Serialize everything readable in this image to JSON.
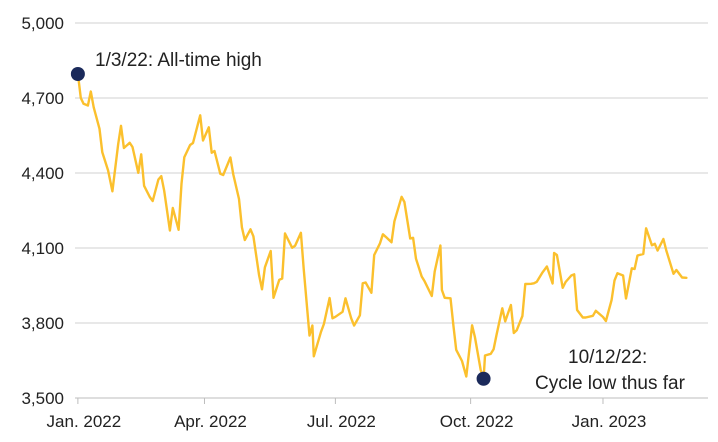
{
  "chart_data": {
    "type": "line",
    "title": "",
    "xlabel": "",
    "ylabel": "",
    "ylim": [
      3500,
      5000
    ],
    "yticks": [
      "3,500",
      "3,800",
      "4,100",
      "4,400",
      "4,700",
      "5,000"
    ],
    "ytick_values": [
      3500,
      3800,
      4100,
      4400,
      4700,
      5000
    ],
    "xticks": [
      "Jan. 2022",
      "Apr. 2022",
      "Jul. 2022",
      "Oct. 2022",
      "Jan. 2023"
    ],
    "xtick_dates": [
      "2022-01-03",
      "2022-04-01",
      "2022-07-01",
      "2022-10-03",
      "2023-01-03"
    ],
    "xlim": [
      "2022-01-01",
      "2023-03-17"
    ],
    "grid": "horizontal",
    "line_color": "#FBC02D",
    "marker_color": "#1B2A5B",
    "series": [
      {
        "name": "",
        "points": [
          [
            "2022-01-03",
            4796
          ],
          [
            "2022-01-05",
            4700
          ],
          [
            "2022-01-07",
            4677
          ],
          [
            "2022-01-10",
            4670
          ],
          [
            "2022-01-12",
            4726
          ],
          [
            "2022-01-14",
            4663
          ],
          [
            "2022-01-18",
            4577
          ],
          [
            "2022-01-20",
            4483
          ],
          [
            "2022-01-24",
            4410
          ],
          [
            "2022-01-27",
            4327
          ],
          [
            "2022-01-31",
            4516
          ],
          [
            "2022-02-02",
            4589
          ],
          [
            "2022-02-04",
            4500
          ],
          [
            "2022-02-08",
            4521
          ],
          [
            "2022-02-10",
            4504
          ],
          [
            "2022-02-14",
            4401
          ],
          [
            "2022-02-16",
            4475
          ],
          [
            "2022-02-18",
            4349
          ],
          [
            "2022-02-22",
            4304
          ],
          [
            "2022-02-24",
            4288
          ],
          [
            "2022-02-28",
            4374
          ],
          [
            "2022-03-02",
            4387
          ],
          [
            "2022-03-04",
            4329
          ],
          [
            "2022-03-08",
            4170
          ],
          [
            "2022-03-10",
            4260
          ],
          [
            "2022-03-14",
            4173
          ],
          [
            "2022-03-16",
            4357
          ],
          [
            "2022-03-18",
            4463
          ],
          [
            "2022-03-22",
            4512
          ],
          [
            "2022-03-24",
            4520
          ],
          [
            "2022-03-29",
            4631
          ],
          [
            "2022-03-31",
            4530
          ],
          [
            "2022-04-04",
            4583
          ],
          [
            "2022-04-06",
            4481
          ],
          [
            "2022-04-08",
            4488
          ],
          [
            "2022-04-12",
            4397
          ],
          [
            "2022-04-14",
            4392
          ],
          [
            "2022-04-19",
            4462
          ],
          [
            "2022-04-21",
            4394
          ],
          [
            "2022-04-25",
            4296
          ],
          [
            "2022-04-27",
            4183
          ],
          [
            "2022-04-29",
            4132
          ],
          [
            "2022-05-03",
            4175
          ],
          [
            "2022-05-05",
            4147
          ],
          [
            "2022-05-09",
            3991
          ],
          [
            "2022-05-11",
            3935
          ],
          [
            "2022-05-13",
            4023
          ],
          [
            "2022-05-17",
            4088
          ],
          [
            "2022-05-19",
            3901
          ],
          [
            "2022-05-23",
            3973
          ],
          [
            "2022-05-25",
            3978
          ],
          [
            "2022-05-27",
            4158
          ],
          [
            "2022-06-01",
            4101
          ],
          [
            "2022-06-03",
            4109
          ],
          [
            "2022-06-07",
            4161
          ],
          [
            "2022-06-09",
            4017
          ],
          [
            "2022-06-13",
            3750
          ],
          [
            "2022-06-15",
            3790
          ],
          [
            "2022-06-16",
            3667
          ],
          [
            "2022-06-21",
            3765
          ],
          [
            "2022-06-23",
            3796
          ],
          [
            "2022-06-27",
            3900
          ],
          [
            "2022-06-29",
            3819
          ],
          [
            "2022-07-01",
            3825
          ],
          [
            "2022-07-06",
            3845
          ],
          [
            "2022-07-08",
            3899
          ],
          [
            "2022-07-12",
            3819
          ],
          [
            "2022-07-14",
            3790
          ],
          [
            "2022-07-18",
            3831
          ],
          [
            "2022-07-20",
            3959
          ],
          [
            "2022-07-22",
            3962
          ],
          [
            "2022-07-26",
            3921
          ],
          [
            "2022-07-28",
            4072
          ],
          [
            "2022-08-01",
            4119
          ],
          [
            "2022-08-03",
            4155
          ],
          [
            "2022-08-05",
            4145
          ],
          [
            "2022-08-09",
            4123
          ],
          [
            "2022-08-11",
            4207
          ],
          [
            "2022-08-16",
            4305
          ],
          [
            "2022-08-18",
            4284
          ],
          [
            "2022-08-22",
            4138
          ],
          [
            "2022-08-24",
            4141
          ],
          [
            "2022-08-26",
            4057
          ],
          [
            "2022-08-30",
            3986
          ],
          [
            "2022-09-01",
            3967
          ],
          [
            "2022-09-06",
            3908
          ],
          [
            "2022-09-08",
            4006
          ],
          [
            "2022-09-12",
            4110
          ],
          [
            "2022-09-13",
            3932
          ],
          [
            "2022-09-15",
            3901
          ],
          [
            "2022-09-19",
            3899
          ],
          [
            "2022-09-21",
            3790
          ],
          [
            "2022-09-23",
            3693
          ],
          [
            "2022-09-27",
            3648
          ],
          [
            "2022-09-30",
            3586
          ],
          [
            "2022-10-04",
            3791
          ],
          [
            "2022-10-06",
            3744
          ],
          [
            "2022-10-10",
            3612
          ],
          [
            "2022-10-12",
            3577
          ],
          [
            "2022-10-13",
            3670
          ],
          [
            "2022-10-17",
            3677
          ],
          [
            "2022-10-19",
            3695
          ],
          [
            "2022-10-21",
            3752
          ],
          [
            "2022-10-25",
            3859
          ],
          [
            "2022-10-27",
            3807
          ],
          [
            "2022-10-31",
            3872
          ],
          [
            "2022-11-02",
            3760
          ],
          [
            "2022-11-04",
            3771
          ],
          [
            "2022-11-08",
            3828
          ],
          [
            "2022-11-10",
            3956
          ],
          [
            "2022-11-14",
            3957
          ],
          [
            "2022-11-16",
            3959
          ],
          [
            "2022-11-18",
            3965
          ],
          [
            "2022-11-22",
            4003
          ],
          [
            "2022-11-25",
            4026
          ],
          [
            "2022-11-29",
            3958
          ],
          [
            "2022-11-30",
            4080
          ],
          [
            "2022-12-02",
            4072
          ],
          [
            "2022-12-06",
            3941
          ],
          [
            "2022-12-08",
            3964
          ],
          [
            "2022-12-12",
            3990
          ],
          [
            "2022-12-14",
            3995
          ],
          [
            "2022-12-16",
            3852
          ],
          [
            "2022-12-20",
            3822
          ],
          [
            "2022-12-22",
            3822
          ],
          [
            "2022-12-27",
            3829
          ],
          [
            "2022-12-29",
            3849
          ],
          [
            "2023-01-03",
            3824
          ],
          [
            "2023-01-05",
            3808
          ],
          [
            "2023-01-09",
            3892
          ],
          [
            "2023-01-11",
            3970
          ],
          [
            "2023-01-13",
            3999
          ],
          [
            "2023-01-17",
            3990
          ],
          [
            "2023-01-19",
            3898
          ],
          [
            "2023-01-23",
            4019
          ],
          [
            "2023-01-25",
            4016
          ],
          [
            "2023-01-27",
            4070
          ],
          [
            "2023-01-31",
            4076
          ],
          [
            "2023-02-02",
            4179
          ],
          [
            "2023-02-06",
            4111
          ],
          [
            "2023-02-08",
            4117
          ],
          [
            "2023-02-10",
            4090
          ],
          [
            "2023-02-14",
            4136
          ],
          [
            "2023-02-16",
            4090
          ],
          [
            "2023-02-21",
            3997
          ],
          [
            "2023-02-23",
            4012
          ],
          [
            "2023-02-27",
            3982
          ],
          [
            "2023-03-02",
            3981
          ]
        ]
      }
    ],
    "annotations": [
      {
        "date": "2022-01-03",
        "value": 4796,
        "label": "1/3/22: All-time high"
      },
      {
        "date": "2022-10-12",
        "value": 3577,
        "label_lines": [
          "10/12/22:",
          "Cycle low thus far"
        ]
      }
    ]
  }
}
